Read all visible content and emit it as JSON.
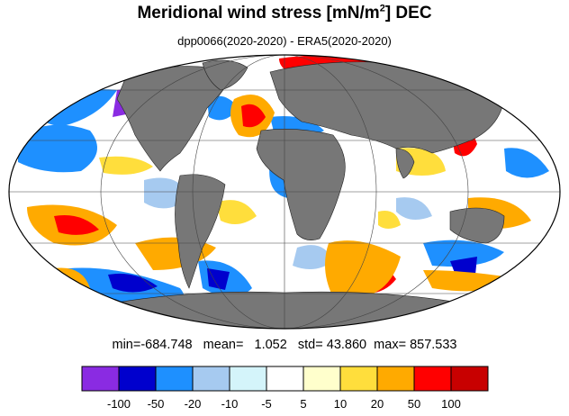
{
  "title": {
    "main": "Meridional wind stress [mN/m",
    "superscript": "2",
    "suffix": "] DEC"
  },
  "subtitle": "dpp0066(2020-2020) - ERA5(2020-2020)",
  "stats": {
    "min_label": "min=",
    "min": "-684.748",
    "mean_label": "mean=",
    "mean": "1.052",
    "std_label": "std=",
    "std": "43.860",
    "max_label": "max=",
    "max": "857.533"
  },
  "colorbar": {
    "colors": [
      "#8a2be2",
      "#0000cd",
      "#1e90ff",
      "#a6caf0",
      "#d4f4fa",
      "#ffffff",
      "#ffffcc",
      "#ffde3c",
      "#ffaa00",
      "#ff0000",
      "#c80000"
    ],
    "tick_labels": [
      "-100",
      "-50",
      "-20",
      "-10",
      "-5",
      "5",
      "10",
      "20",
      "50",
      "100"
    ]
  },
  "map_colors": {
    "land": "#777777",
    "grid": "#444444"
  }
}
